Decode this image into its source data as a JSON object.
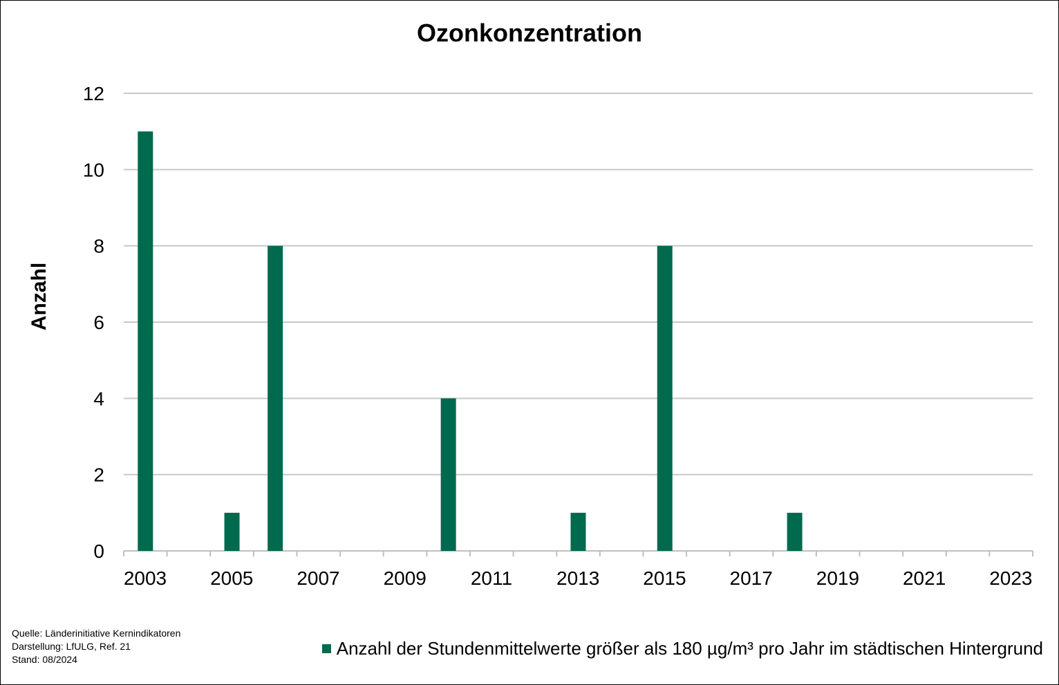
{
  "chart_data": {
    "type": "bar",
    "title": "Ozonkonzentration",
    "ylabel": "Anzahl",
    "xlabel": "",
    "ylim": [
      0,
      12
    ],
    "y_ticks": [
      0,
      2,
      4,
      6,
      8,
      10,
      12
    ],
    "x_tick_labels": [
      "2003",
      "2005",
      "2007",
      "2009",
      "2011",
      "2013",
      "2015",
      "2017",
      "2019",
      "2021",
      "2023"
    ],
    "categories": [
      "2003",
      "2004",
      "2005",
      "2006",
      "2007",
      "2008",
      "2009",
      "2010",
      "2011",
      "2012",
      "2013",
      "2014",
      "2015",
      "2016",
      "2017",
      "2018",
      "2019",
      "2020",
      "2021",
      "2022",
      "2023"
    ],
    "series": [
      {
        "name": "Anzahl der Stundenmittelwerte größer als 180 µg/m³ pro Jahr im städtischen Hintergrund",
        "values": [
          11,
          0,
          1,
          8,
          0,
          0,
          0,
          4,
          0,
          0,
          1,
          0,
          8,
          0,
          0,
          1,
          0,
          0,
          0,
          0,
          0
        ]
      }
    ],
    "grid": true,
    "legend_position": "bottom-right",
    "colors": {
      "bar": "#006a4e",
      "grid": "#c8c8c8",
      "axis": "#bfbfbf"
    }
  },
  "footer": {
    "source": "Quelle:  Länderinitiative  Kernindikatoren",
    "credit": "Darstellung:  LfULG,  Ref. 21",
    "date": "Stand:  08/2024"
  }
}
